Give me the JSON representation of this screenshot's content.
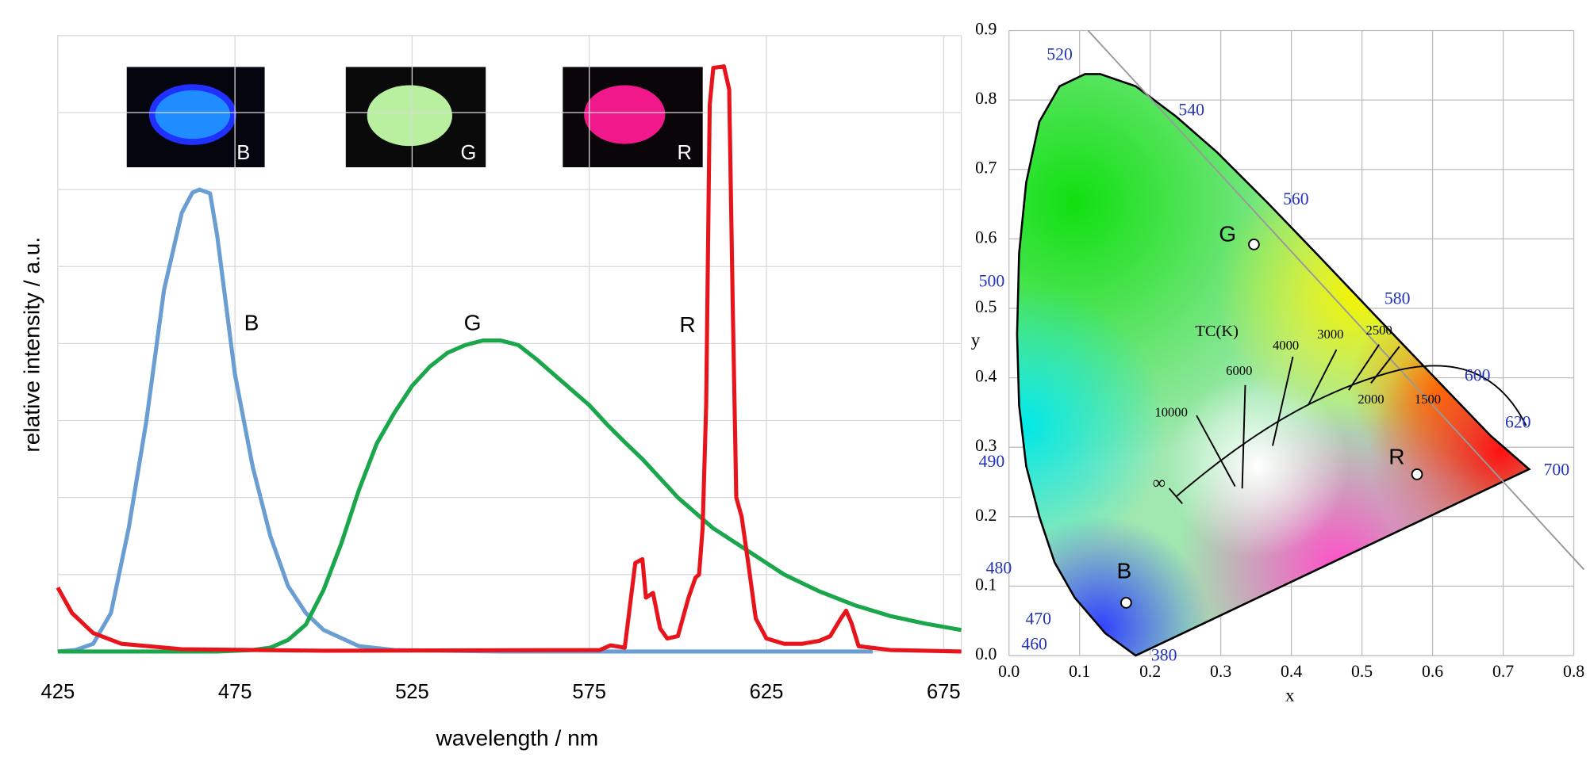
{
  "chart_data": [
    {
      "type": "line",
      "x_label": "wavelength / nm",
      "y_label": "relative intensity / a.u.",
      "xlim": [
        425,
        680
      ],
      "xticks": [
        425,
        475,
        525,
        575,
        625,
        675
      ],
      "ylim": [
        0,
        8
      ],
      "yticks": [
        0,
        1,
        2,
        3,
        4,
        5,
        6,
        7,
        8
      ],
      "grid": true,
      "series": [
        {
          "name": "B",
          "color": "#6a9ed2",
          "x": [
            425,
            430,
            435,
            440,
            445,
            450,
            455,
            460,
            463,
            465,
            468,
            470,
            475,
            480,
            485,
            490,
            495,
            500,
            510,
            520,
            550,
            600,
            655
          ],
          "values": [
            0.0,
            0.02,
            0.1,
            0.5,
            1.6,
            3.0,
            4.7,
            5.7,
            5.96,
            6.0,
            5.95,
            5.4,
            3.6,
            2.4,
            1.5,
            0.85,
            0.5,
            0.28,
            0.07,
            0.02,
            0.0,
            0.0,
            0.0
          ]
        },
        {
          "name": "G",
          "color": "#1aa64b",
          "x": [
            425,
            470,
            480,
            485,
            490,
            495,
            500,
            505,
            510,
            515,
            520,
            525,
            530,
            535,
            540,
            545,
            550,
            555,
            560,
            565,
            570,
            575,
            580,
            585,
            590,
            595,
            600,
            610,
            620,
            630,
            640,
            650,
            660,
            670,
            680
          ],
          "values": [
            0.0,
            0.0,
            0.02,
            0.05,
            0.15,
            0.35,
            0.8,
            1.4,
            2.1,
            2.7,
            3.1,
            3.45,
            3.7,
            3.88,
            3.98,
            4.04,
            4.04,
            3.98,
            3.8,
            3.6,
            3.4,
            3.2,
            2.95,
            2.72,
            2.5,
            2.25,
            2.0,
            1.6,
            1.3,
            1.0,
            0.78,
            0.6,
            0.46,
            0.36,
            0.28
          ]
        },
        {
          "name": "R",
          "color": "#e8141b",
          "x": [
            425,
            429,
            435,
            443,
            460,
            500,
            578,
            581,
            585,
            588,
            590,
            591,
            593,
            595,
            597,
            600,
            603,
            605,
            606,
            607,
            608,
            609,
            610,
            613,
            614.5,
            615.5,
            616.5,
            618,
            620,
            622,
            625,
            630,
            635,
            640,
            643,
            646,
            647.5,
            649,
            651,
            660,
            680
          ],
          "values": [
            0.83,
            0.5,
            0.24,
            0.1,
            0.03,
            0.01,
            0.02,
            0.08,
            0.05,
            1.15,
            1.2,
            0.7,
            0.76,
            0.3,
            0.17,
            0.2,
            0.7,
            0.96,
            1.0,
            1.6,
            3.2,
            7.1,
            7.58,
            7.6,
            7.3,
            4.5,
            2.0,
            1.75,
            1.1,
            0.43,
            0.17,
            0.1,
            0.1,
            0.14,
            0.2,
            0.43,
            0.53,
            0.37,
            0.07,
            0.02,
            0.0
          ]
        }
      ]
    },
    {
      "type": "scatter",
      "x_label": "x",
      "y_label": "y",
      "xlim": [
        0,
        0.8
      ],
      "xticks": [
        {
          "value": 0,
          "label": "0.0"
        },
        0.1,
        0.2,
        0.3,
        0.4,
        0.5,
        0.6,
        0.7,
        0.8
      ],
      "ylim": [
        0,
        0.9
      ],
      "yticks": [
        {
          "value": 0,
          "label": "0.0"
        },
        0.1,
        0.2,
        0.3,
        0.4,
        0.5,
        0.6,
        0.7,
        0.8,
        0.9
      ],
      "grid": true,
      "series": [
        {
          "name": "B",
          "color": "#ffffff",
          "x": [
            0.166
          ],
          "values": [
            0.076
          ]
        },
        {
          "name": "G",
          "color": "#ffffff",
          "x": [
            0.347
          ],
          "values": [
            0.592
          ]
        },
        {
          "name": "R",
          "color": "#ffffff",
          "x": [
            0.578
          ],
          "values": [
            0.261
          ]
        }
      ],
      "locus_labels": [
        "520",
        "540",
        "560",
        "580",
        "600",
        "620",
        "700",
        "500",
        "490",
        "480",
        "470",
        "460",
        "380"
      ],
      "planckian_title": "TC(K)",
      "planckian_labels": [
        "10000",
        "6000",
        "4000",
        "3000",
        "2500",
        "2000",
        "1500",
        "∞"
      ]
    }
  ]
}
